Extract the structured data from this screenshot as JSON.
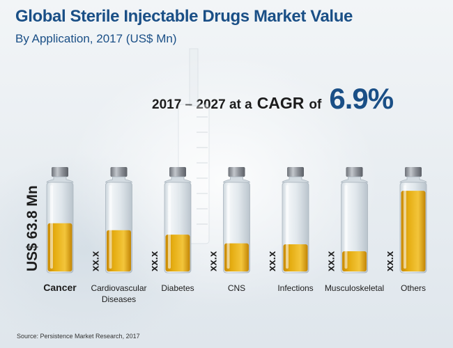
{
  "header": {
    "title": "Global Sterile Injectable Drugs Market Value",
    "subtitle": "By Application, 2017 (US$ Mn)"
  },
  "cagr": {
    "prefix": "2017 – 2027 at a",
    "keyword": "CAGR",
    "of": "of",
    "value": "6.9%"
  },
  "source": "Source: Persistence Market Research, 2017",
  "colors": {
    "accent": "#1a4f86",
    "liquid": "#e5ad12",
    "cap": "#8c9097"
  },
  "chart_data": {
    "type": "bar",
    "title": "Global Sterile Injectable Drugs Market Value",
    "subtitle": "By Application, 2017 (US$ Mn)",
    "categories": [
      "Cancer",
      "Cardiovascular Diseases",
      "Diabetes",
      "CNS",
      "Infections",
      "Musculoskeletal",
      "Others"
    ],
    "fill_levels": [
      0.55,
      0.47,
      0.42,
      0.32,
      0.31,
      0.23,
      0.92
    ],
    "value_labels": [
      "US$ 63.8 Mn",
      "xx.x",
      "xx.x",
      "xx.x",
      "xx.x",
      "xx.x",
      "xx.x"
    ],
    "ylim": [
      0,
      1
    ]
  }
}
